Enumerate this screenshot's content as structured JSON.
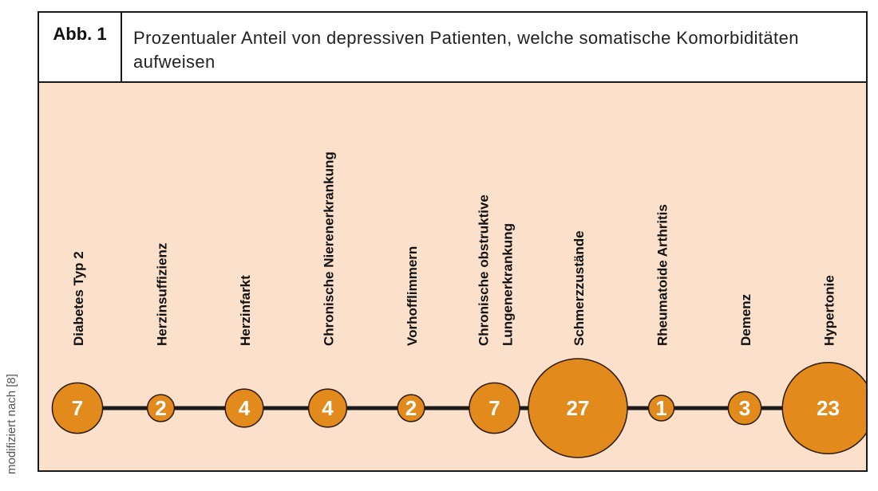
{
  "figure": {
    "label": "Abb. 1",
    "title": "Prozentualer Anteil von depressiven Patienten, welche somatische Komorbiditäten aufweisen",
    "source_note": "modifiziert nach [8]"
  },
  "colors": {
    "background": "#fbe1cb",
    "bubble_fill": "#e38a1c",
    "bubble_stroke": "#2b1a0a",
    "line": "#1a1a1a"
  },
  "chart_data": {
    "type": "bubble",
    "title": "Prozentualer Anteil von depressiven Patienten, welche somatische Komorbiditäten aufweisen",
    "unit": "",
    "categories": [
      [
        "Diabetes Typ 2"
      ],
      [
        "Herzinsuffizienz"
      ],
      [
        "Herzinfarkt"
      ],
      [
        "Chronische Nierenerkrankung"
      ],
      [
        "Vorhofflimmern"
      ],
      [
        "Chronische obstruktive",
        "Lungenerkrankung"
      ],
      [
        "Schmerzzustände"
      ],
      [
        "Rheumatoide Arthritis"
      ],
      [
        "Demenz"
      ],
      [
        "Hypertonie"
      ]
    ],
    "values": [
      7,
      2,
      4,
      4,
      2,
      7,
      27,
      1,
      3,
      23
    ]
  }
}
